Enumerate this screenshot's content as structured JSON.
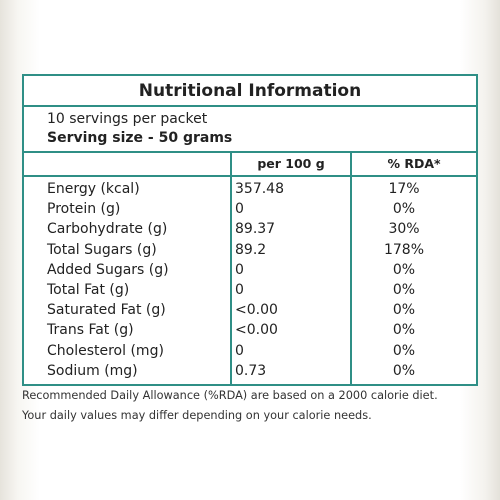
{
  "title": "Nutritional Information",
  "servings": "10 servings per packet",
  "serving_size": "Serving size - 50 grams",
  "columns": [
    "per 100 g",
    "% RDA*"
  ],
  "rows": [
    [
      "Energy (kcal)",
      "357.48",
      "17%"
    ],
    [
      "Protein (g)",
      "0",
      "0%"
    ],
    [
      "Carbohydrate (g)",
      "89.37",
      "30%"
    ],
    [
      "Total Sugars (g)",
      "89.2",
      "178%"
    ],
    [
      "Added Sugars (g)",
      "0",
      "0%"
    ],
    [
      "Total Fat (g)",
      "0",
      "0%"
    ],
    [
      "Saturated Fat (g)",
      "<0.00",
      "0%"
    ],
    [
      "Trans Fat (g)",
      "<0.00",
      "0%"
    ],
    [
      "Cholesterol (mg)",
      "0",
      "0%"
    ],
    [
      "Sodium (mg)",
      "0.73",
      "0%"
    ]
  ],
  "footnotes": [
    "Recommended Daily Allowance (%RDA) are based on a 2000 calorie diet.",
    "Your daily values may differ depending on your calorie needs."
  ]
}
